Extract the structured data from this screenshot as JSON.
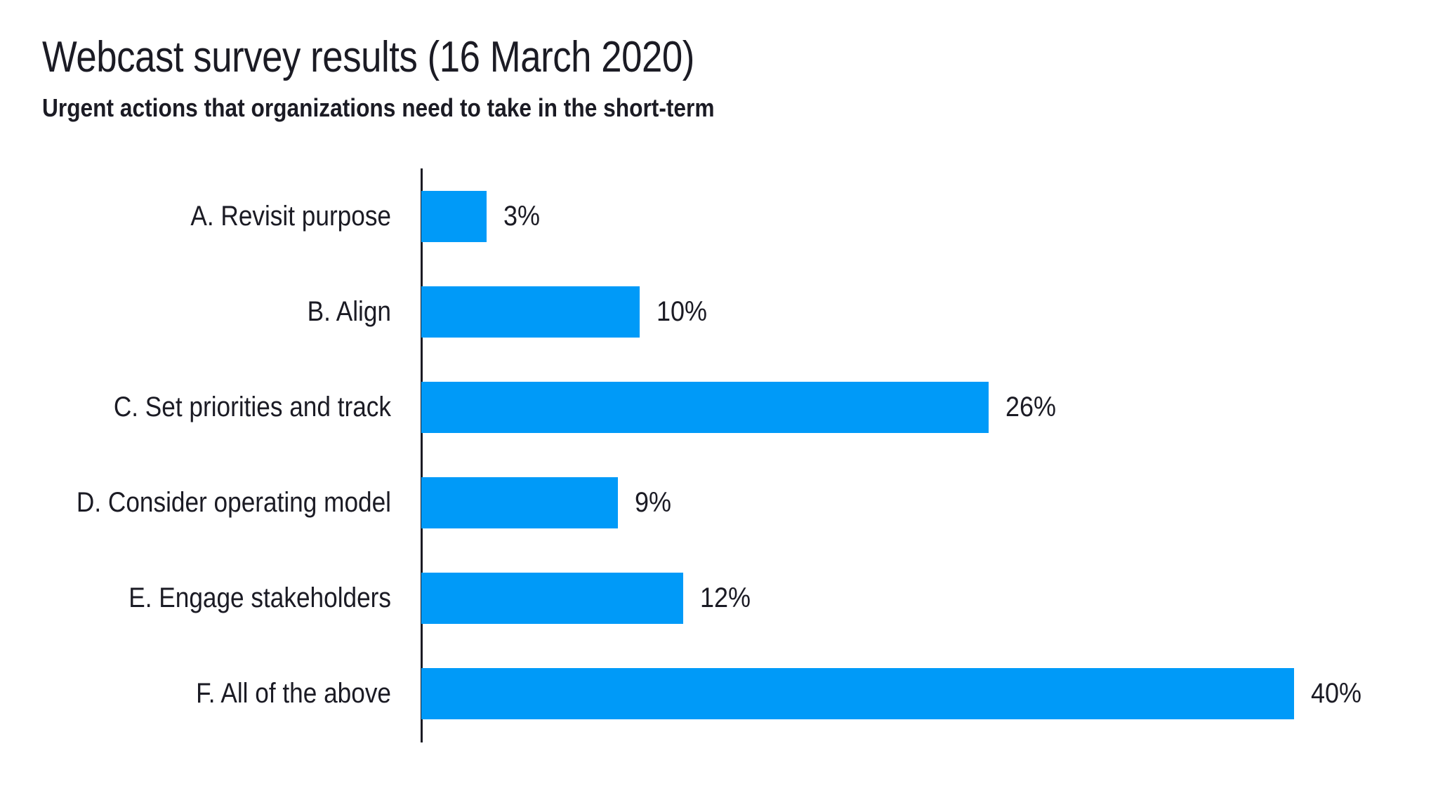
{
  "chart_data": {
    "type": "bar",
    "orientation": "horizontal",
    "title": "Webcast survey results (16 March 2020)",
    "subtitle": "Urgent actions that organizations need to take in the short-term",
    "categories": [
      "A. Revisit purpose",
      "B. Align",
      "C. Set priorities and track",
      "D. Consider operating model",
      "E. Engage stakeholders",
      "F. All of the above"
    ],
    "values": [
      3,
      10,
      26,
      9,
      12,
      40
    ],
    "value_labels": [
      "3%",
      "10%",
      "26%",
      "9%",
      "12%",
      "40%"
    ],
    "unit": "%",
    "xlim": [
      0,
      40
    ],
    "grid": false,
    "legend": "none",
    "bar_color": "#009AF8",
    "axis_color": "#1b1b24",
    "text_color": "#1b1b24",
    "background_color": "#ffffff"
  }
}
